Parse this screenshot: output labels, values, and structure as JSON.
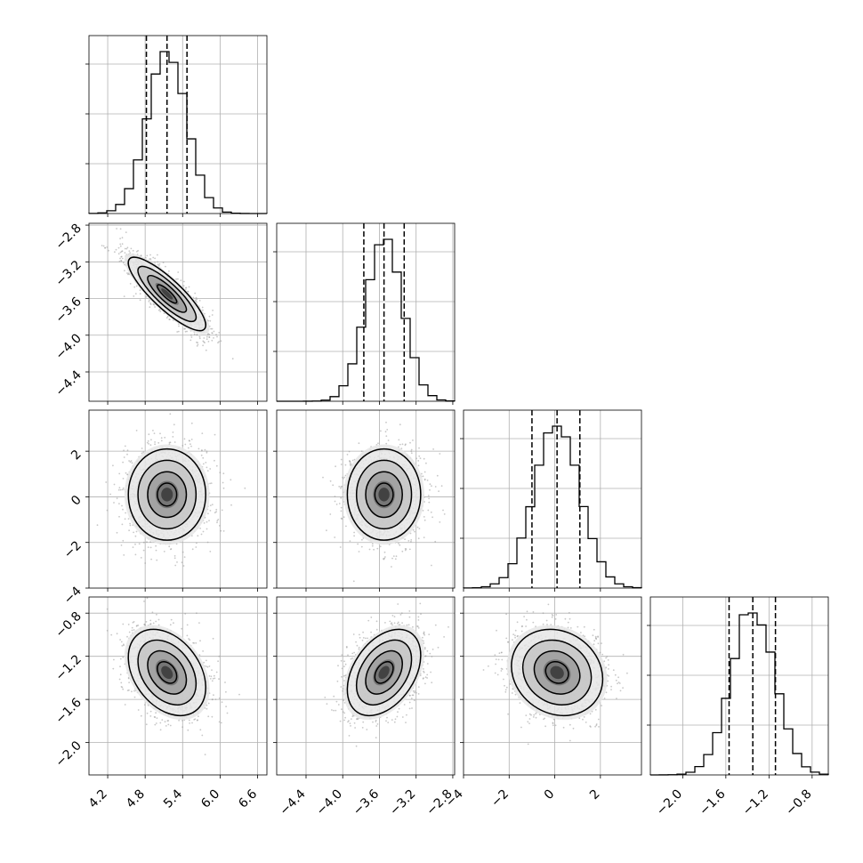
{
  "chart_data": {
    "type": "corner",
    "grid": true,
    "colors": {
      "points": "#9a9a9a",
      "line": "#000000",
      "grid": "#b0b0b0"
    },
    "parameters": [
      {
        "mean": 5.15,
        "sd": 0.31,
        "ticks": [
          4.2,
          4.8,
          5.4,
          6.0,
          6.6
        ],
        "tick_labels": [
          "4.2",
          "4.8",
          "5.4",
          "6.0",
          "6.6"
        ],
        "range": [
          3.9,
          6.75
        ],
        "quantiles": [
          4.82,
          5.15,
          5.47
        ]
      },
      {
        "mean": -3.55,
        "sd": 0.2,
        "ticks": [
          -4.4,
          -4.0,
          -3.6,
          -3.2,
          -2.8
        ],
        "tick_labels": [
          "−4.4",
          "−4.0",
          "−3.6",
          "−3.2",
          "−2.8"
        ],
        "range": [
          -4.72,
          -2.78
        ],
        "quantiles": [
          -3.77,
          -3.55,
          -3.33
        ]
      },
      {
        "mean": 0.1,
        "sd": 1.0,
        "ticks": [
          -4,
          -2,
          0,
          2
        ],
        "tick_labels": [
          "−4",
          "−2",
          "0",
          "2"
        ],
        "range": [
          -4.0,
          3.8
        ],
        "quantiles": [
          -1.0,
          0.1,
          1.1
        ]
      },
      {
        "mean": -1.35,
        "sd": 0.2,
        "ticks": [
          -2.0,
          -1.6,
          -1.2,
          -0.8
        ],
        "tick_labels": [
          "−2.0",
          "−1.6",
          "−1.2",
          "−0.8"
        ],
        "range": [
          -2.3,
          -0.65
        ],
        "quantiles": [
          -1.57,
          -1.35,
          -1.14
        ]
      }
    ],
    "correlations": [
      {
        "pair": [
          0,
          1
        ],
        "rho": -0.85
      },
      {
        "pair": [
          0,
          2
        ],
        "rho": 0.0
      },
      {
        "pair": [
          1,
          2
        ],
        "rho": 0.0
      },
      {
        "pair": [
          0,
          3
        ],
        "rho": -0.35
      },
      {
        "pair": [
          1,
          3
        ],
        "rho": 0.4
      },
      {
        "pair": [
          2,
          3
        ],
        "rho": -0.15
      }
    ],
    "contour_levels_sigma": [
      0.5,
      1.0,
      1.5,
      2.0
    ],
    "histogram_bins": 20
  }
}
